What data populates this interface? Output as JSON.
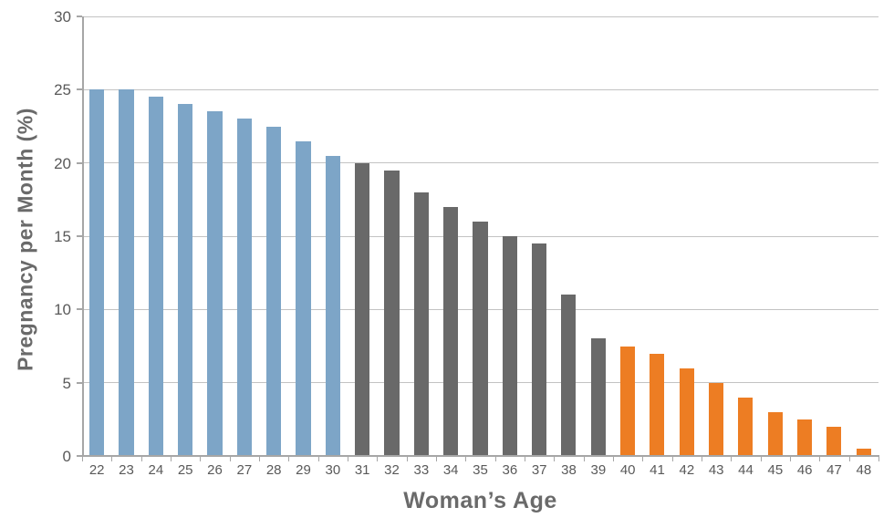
{
  "chart_data": {
    "type": "bar",
    "title": "",
    "xlabel": "Woman’s Age",
    "ylabel": "Pregnancy per Month (%)",
    "ylim": [
      0,
      30
    ],
    "yticks": [
      0,
      5,
      10,
      15,
      20,
      25,
      30
    ],
    "grid": true,
    "legend": "none",
    "categories": [
      "22",
      "23",
      "24",
      "25",
      "26",
      "27",
      "28",
      "29",
      "30",
      "31",
      "32",
      "33",
      "34",
      "35",
      "36",
      "37",
      "38",
      "39",
      "40",
      "41",
      "42",
      "43",
      "44",
      "45",
      "46",
      "47",
      "48"
    ],
    "values": [
      25,
      25,
      24.5,
      24,
      23.5,
      23,
      22.5,
      21.5,
      20.5,
      20,
      19.5,
      18,
      17,
      16,
      15,
      14.5,
      11,
      8,
      7.5,
      7,
      6,
      5,
      4,
      3,
      2.5,
      2,
      0.5
    ],
    "series_groups": [
      {
        "name": "ages-22-30",
        "color": "#7da5c7",
        "first_category": "22",
        "last_category": "30"
      },
      {
        "name": "ages-31-39",
        "color": "#696969",
        "first_category": "31",
        "last_category": "39"
      },
      {
        "name": "ages-40-48",
        "color": "#ed7d23",
        "first_category": "40",
        "last_category": "48"
      }
    ],
    "bar_group_index": [
      0,
      0,
      0,
      0,
      0,
      0,
      0,
      0,
      0,
      1,
      1,
      1,
      1,
      1,
      1,
      1,
      1,
      1,
      2,
      2,
      2,
      2,
      2,
      2,
      2,
      2,
      2
    ]
  },
  "styles": {
    "background": "#ffffff",
    "gridline_color": "#c3c3c3",
    "axis_line_color": "#a6a6a6",
    "tick_label_color": "#595959",
    "axis_title_color": "#6a6a6a"
  }
}
